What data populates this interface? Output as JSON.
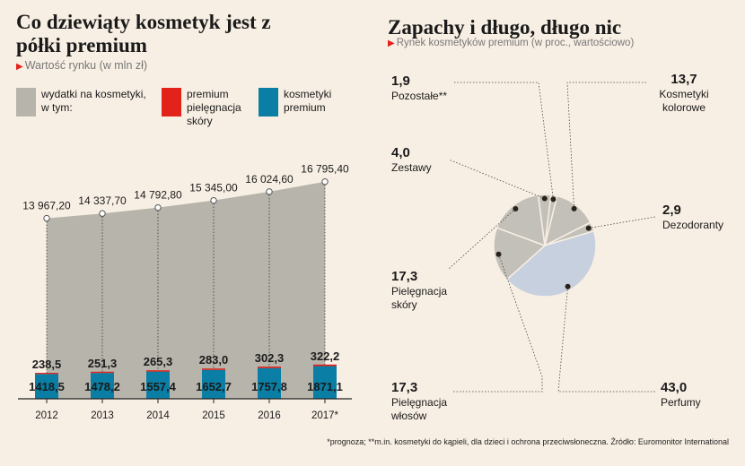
{
  "left": {
    "title": "Co dziewiąty kosmetyk jest z półki premium",
    "subtitle": "Wartość rynku (w mln zł)",
    "legend": [
      {
        "label": "wydatki na kosmetyki, w tym:",
        "color": "#b7b4ab"
      },
      {
        "label": "premium pielęgnacja skóry",
        "color": "#e2231a"
      },
      {
        "label": "kosmetyki premium",
        "color": "#0a7ea4"
      }
    ]
  },
  "right": {
    "title": "Zapachy i długo, długo nic",
    "subtitle": "Rynek kosmetyków premium (w proc., wartościowo)"
  },
  "footnote": "*prognoza; **m.in. kosmetyki do kąpieli, dla dzieci i ochrona przeciwsłoneczna. Źródło: Euromonitor International",
  "chart_data": [
    {
      "type": "area",
      "title": "Co dziewiąty kosmetyk jest z półki premium",
      "ylabel": "Wartość rynku (w mln zł)",
      "categories": [
        "2012",
        "2013",
        "2014",
        "2015",
        "2016",
        "2017*"
      ],
      "ylim": [
        0,
        18000
      ],
      "series": [
        {
          "name": "wydatki na kosmetyki, w tym:",
          "values": [
            13967.2,
            14337.7,
            14792.8,
            15345.0,
            16024.6,
            16795.4
          ],
          "labels": [
            "13 967,20",
            "14 337,70",
            "14 792,80",
            "15 345,00",
            "16 024,60",
            "16 795,40"
          ],
          "color": "#b7b4ab"
        },
        {
          "name": "premium pielęgnacja skóry",
          "values": [
            238.5,
            251.3,
            265.3,
            283.0,
            302.3,
            322.2
          ],
          "labels": [
            "238,5",
            "251,3",
            "265,3",
            "283,0",
            "302,3",
            "322,2"
          ],
          "color": "#e2231a"
        },
        {
          "name": "kosmetyki premium",
          "values": [
            1418.5,
            1478.2,
            1557.4,
            1652.7,
            1757.8,
            1871.1
          ],
          "labels": [
            "1418,5",
            "1478,2",
            "1557,4",
            "1652,7",
            "1757,8",
            "1871,1"
          ],
          "color": "#0a7ea4"
        }
      ]
    },
    {
      "type": "pie",
      "title": "Zapachy i długo, długo nic",
      "subtitle": "Rynek kosmetyków premium (w proc., wartościowo)",
      "slices": [
        {
          "name": "Kosmetyki kolorowe",
          "value": 13.7,
          "label": "13,7",
          "color": "#c2c0b8"
        },
        {
          "name": "Dezodoranty",
          "value": 2.9,
          "label": "2,9",
          "color": "#c2c0b8"
        },
        {
          "name": "Perfumy",
          "value": 43.0,
          "label": "43,0",
          "color": "#c7d0de"
        },
        {
          "name": "Pielęgnacja włosów",
          "value": 17.3,
          "label": "17,3",
          "color": "#c2c0b8"
        },
        {
          "name": "Pielęgnacja skóry",
          "value": 17.3,
          "label": "17,3",
          "color": "#c2c0b8"
        },
        {
          "name": "Zestawy",
          "value": 4.0,
          "label": "4,0",
          "color": "#c2c0b8"
        },
        {
          "name": "Pozostałe**",
          "value": 1.9,
          "label": "1,9",
          "color": "#c2c0b8"
        }
      ]
    }
  ]
}
